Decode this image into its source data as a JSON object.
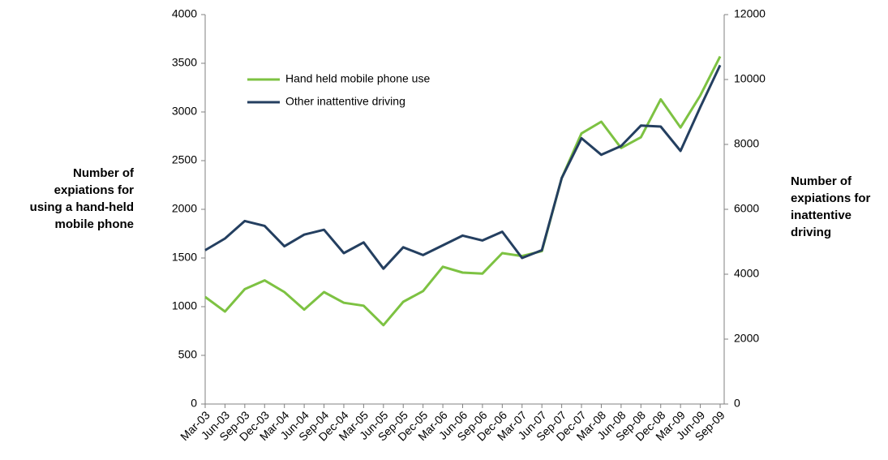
{
  "chart_data": {
    "type": "line",
    "ylabel": "Number of expiations for using a hand-held mobile phone",
    "y2label": "Number of expiations for inattentive driving",
    "categories": [
      "Mar-03",
      "Jun-03",
      "Sep-03",
      "Dec-03",
      "Mar-04",
      "Jun-04",
      "Sep-04",
      "Dec-04",
      "Mar-05",
      "Jun-05",
      "Sep-05",
      "Dec-05",
      "Mar-06",
      "Jun-06",
      "Sep-06",
      "Dec-06",
      "Mar-07",
      "Jun-07",
      "Sep-07",
      "Dec-07",
      "Mar-08",
      "Jun-08",
      "Sep-08",
      "Dec-08",
      "Mar-09",
      "Jun-09",
      "Sep-09"
    ],
    "series": [
      {
        "name": "Hand held mobile phone use",
        "color": "#7dc242",
        "values": [
          1100,
          950,
          1180,
          1270,
          1150,
          970,
          1150,
          1040,
          1010,
          810,
          1050,
          1160,
          1410,
          1350,
          1340,
          1550,
          1520,
          1570,
          2320,
          2780,
          2900,
          2630,
          2740,
          3130,
          2840,
          3170,
          3570
        ]
      },
      {
        "name": "Other inattentive driving",
        "color": "#243f60",
        "axis": "y2",
        "values": [
          4740,
          5100,
          5640,
          5490,
          4860,
          5220,
          5370,
          4650,
          4980,
          4170,
          4830,
          4590,
          4890,
          5190,
          5040,
          5310,
          4500,
          4740,
          6960,
          8190,
          7680,
          7950,
          8580,
          8550,
          7800,
          9150,
          10440
        ]
      }
    ],
    "ylim": [
      0,
      4000
    ],
    "yticks": [
      0,
      500,
      1000,
      1500,
      2000,
      2500,
      3000,
      3500,
      4000
    ],
    "y2lim": [
      0,
      12000
    ],
    "y2ticks": [
      0,
      2000,
      4000,
      6000,
      8000,
      10000,
      12000
    ],
    "legend": "upper left"
  }
}
